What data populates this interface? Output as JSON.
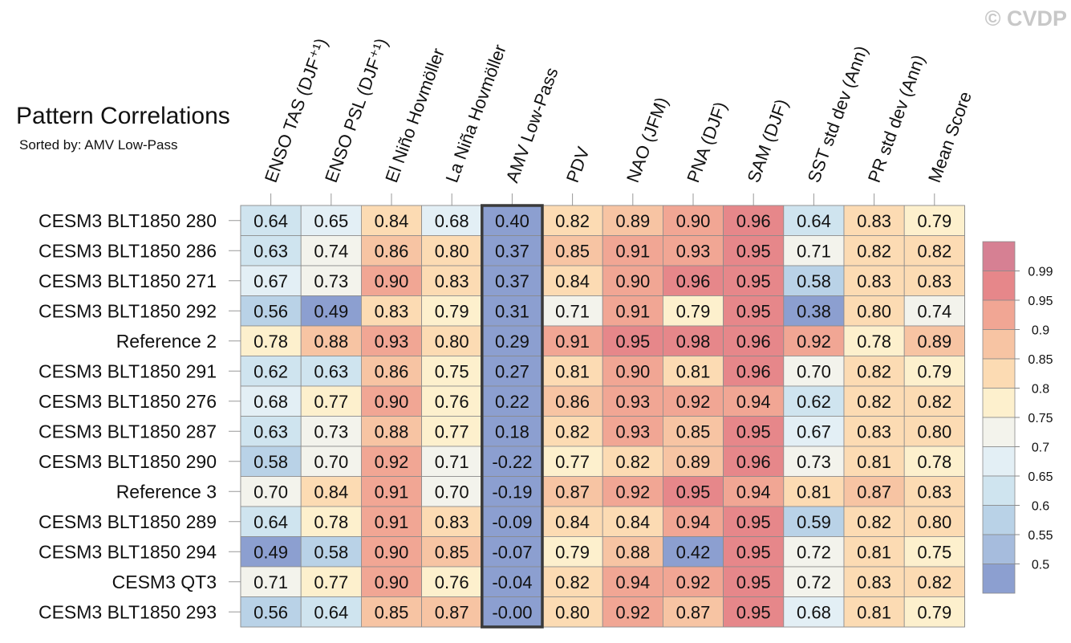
{
  "watermark": "© CVDP",
  "chart_data": {
    "type": "heatmap",
    "title": "Pattern Correlations",
    "subtitle": "Sorted by: AMV Low-Pass",
    "highlight_column": 4,
    "columns": [
      "ENSO TAS (DJF⁺¹)",
      "ENSO PSL (DJF⁺¹)",
      "El Niño Hovmöller",
      "La Niña Hovmöller",
      "AMV Low-Pass",
      "PDV",
      "NAO (JFM)",
      "PNA (DJF)",
      "SAM (DJF)",
      "SST std dev (Ann)",
      "PR std dev (Ann)",
      "Mean Score"
    ],
    "rows": [
      "CESM3 BLT1850 280",
      "CESM3 BLT1850 286",
      "CESM3 BLT1850 271",
      "CESM3 BLT1850 292",
      "Reference 2",
      "CESM3 BLT1850 291",
      "CESM3 BLT1850 276",
      "CESM3 BLT1850 287",
      "CESM3 BLT1850 290",
      "Reference 3",
      "CESM3 BLT1850 289",
      "CESM3 BLT1850 294",
      "CESM3 QT3",
      "CESM3 BLT1850 293"
    ],
    "values": [
      [
        "0.64",
        "0.65",
        "0.84",
        "0.68",
        "0.40",
        "0.82",
        "0.89",
        "0.90",
        "0.96",
        "0.64",
        "0.83",
        "0.79"
      ],
      [
        "0.63",
        "0.74",
        "0.86",
        "0.80",
        "0.37",
        "0.85",
        "0.91",
        "0.93",
        "0.95",
        "0.71",
        "0.82",
        "0.82"
      ],
      [
        "0.67",
        "0.73",
        "0.90",
        "0.83",
        "0.37",
        "0.84",
        "0.90",
        "0.96",
        "0.95",
        "0.58",
        "0.83",
        "0.83"
      ],
      [
        "0.56",
        "0.49",
        "0.83",
        "0.79",
        "0.31",
        "0.71",
        "0.91",
        "0.79",
        "0.95",
        "0.38",
        "0.80",
        "0.74"
      ],
      [
        "0.78",
        "0.88",
        "0.93",
        "0.80",
        "0.29",
        "0.91",
        "0.95",
        "0.98",
        "0.96",
        "0.92",
        "0.78",
        "0.89"
      ],
      [
        "0.62",
        "0.63",
        "0.86",
        "0.75",
        "0.27",
        "0.81",
        "0.90",
        "0.81",
        "0.96",
        "0.70",
        "0.82",
        "0.79"
      ],
      [
        "0.68",
        "0.77",
        "0.90",
        "0.76",
        "0.22",
        "0.86",
        "0.93",
        "0.92",
        "0.94",
        "0.62",
        "0.82",
        "0.82"
      ],
      [
        "0.63",
        "0.73",
        "0.88",
        "0.77",
        "0.18",
        "0.82",
        "0.93",
        "0.85",
        "0.95",
        "0.67",
        "0.83",
        "0.80"
      ],
      [
        "0.58",
        "0.70",
        "0.92",
        "0.71",
        "-0.22",
        "0.77",
        "0.82",
        "0.89",
        "0.96",
        "0.73",
        "0.81",
        "0.78"
      ],
      [
        "0.70",
        "0.84",
        "0.91",
        "0.70",
        "-0.19",
        "0.87",
        "0.92",
        "0.95",
        "0.94",
        "0.81",
        "0.87",
        "0.83"
      ],
      [
        "0.64",
        "0.78",
        "0.91",
        "0.83",
        "-0.09",
        "0.84",
        "0.84",
        "0.94",
        "0.95",
        "0.59",
        "0.82",
        "0.80"
      ],
      [
        "0.49",
        "0.58",
        "0.90",
        "0.85",
        "-0.07",
        "0.79",
        "0.88",
        "0.42",
        "0.95",
        "0.72",
        "0.81",
        "0.75"
      ],
      [
        "0.71",
        "0.77",
        "0.90",
        "0.76",
        "-0.04",
        "0.82",
        "0.94",
        "0.92",
        "0.95",
        "0.72",
        "0.83",
        "0.82"
      ],
      [
        "0.56",
        "0.64",
        "0.85",
        "0.87",
        "-0.00",
        "0.80",
        "0.92",
        "0.87",
        "0.95",
        "0.68",
        "0.81",
        "0.79"
      ]
    ],
    "colorbar": {
      "labels": [
        "0.99",
        "0.95",
        "0.9",
        "0.85",
        "0.8",
        "0.75",
        "0.7",
        "0.65",
        "0.6",
        "0.55",
        "0.5"
      ],
      "bins": [
        {
          "min": 0.99,
          "color": "#d68093"
        },
        {
          "min": 0.95,
          "color": "#e6878a"
        },
        {
          "min": 0.9,
          "color": "#f1a694"
        },
        {
          "min": 0.85,
          "color": "#f7c4a3"
        },
        {
          "min": 0.8,
          "color": "#fcdbb3"
        },
        {
          "min": 0.75,
          "color": "#fdf0cd"
        },
        {
          "min": 0.7,
          "color": "#f3f3ec"
        },
        {
          "min": 0.65,
          "color": "#e3eff5"
        },
        {
          "min": 0.6,
          "color": "#cfe4ef"
        },
        {
          "min": 0.55,
          "color": "#b9d2e7"
        },
        {
          "min": 0.5,
          "color": "#a6bcdd"
        },
        {
          "min": -9,
          "color": "#8c9fd0"
        }
      ]
    }
  }
}
